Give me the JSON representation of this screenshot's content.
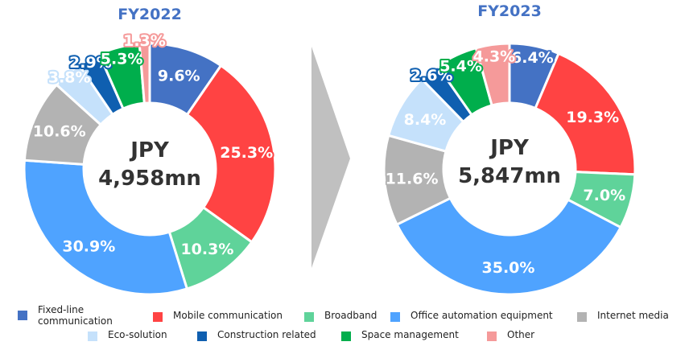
{
  "colors": {
    "Fixed-line communication": "#4472c4",
    "Mobile communication": "#ff4343",
    "Broadband": "#5fd39a",
    "Office automation equipment": "#4fa3ff",
    "Internet media": "#b3b3b3",
    "Eco-solution": "#c5e1fb",
    "Construction related": "#0f5fb0",
    "Space management": "#00ae4c",
    "Other": "#f59a9a"
  },
  "legend": {
    "items": [
      {
        "name": "Fixed-line communication",
        "label": "Fixed-line\ncommunication"
      },
      {
        "name": "Mobile communication",
        "label": "Mobile communication"
      },
      {
        "name": "Broadband",
        "label": "Broadband"
      },
      {
        "name": "Office automation equipment",
        "label": "Office automation equipment"
      },
      {
        "name": "Internet media",
        "label": "Internet media"
      },
      {
        "name": "Eco-solution",
        "label": "Eco-solution"
      },
      {
        "name": "Construction related",
        "label": "Construction related"
      },
      {
        "name": "Space management",
        "label": "Space management"
      },
      {
        "name": "Other",
        "label": "Other"
      }
    ]
  },
  "chart_data": [
    {
      "type": "pie",
      "title": "FY2022",
      "center_label": [
        "JPY",
        "4,958mn"
      ],
      "categories": [
        "Fixed-line communication",
        "Mobile communication",
        "Broadband",
        "Office automation equipment",
        "Internet media",
        "Eco-solution",
        "Construction related",
        "Space management",
        "Other"
      ],
      "values": [
        9.6,
        25.3,
        10.3,
        30.9,
        10.6,
        3.8,
        2.9,
        5.3,
        1.3
      ],
      "data_labels": [
        "9.6%",
        "25.3%",
        "10.3%",
        "30.9%",
        "10.6%",
        "3.8%",
        "2.9%",
        "5.3%",
        "1.3%"
      ],
      "legend": "bottom"
    },
    {
      "type": "pie",
      "title": "FY2023",
      "center_label": [
        "JPY",
        "5,847mn"
      ],
      "categories": [
        "Fixed-line communication",
        "Mobile communication",
        "Broadband",
        "Office automation equipment",
        "Internet media",
        "Eco-solution",
        "Construction related",
        "Space management",
        "Other"
      ],
      "values": [
        6.4,
        19.3,
        7.0,
        35.0,
        11.6,
        8.4,
        2.6,
        5.4,
        4.3
      ],
      "data_labels": [
        "6.4%",
        "19.3%",
        "7.0%",
        "35.0%",
        "11.6%",
        "8.4%",
        "2.6%",
        "5.4%",
        "4.3%"
      ],
      "legend": "bottom"
    }
  ]
}
